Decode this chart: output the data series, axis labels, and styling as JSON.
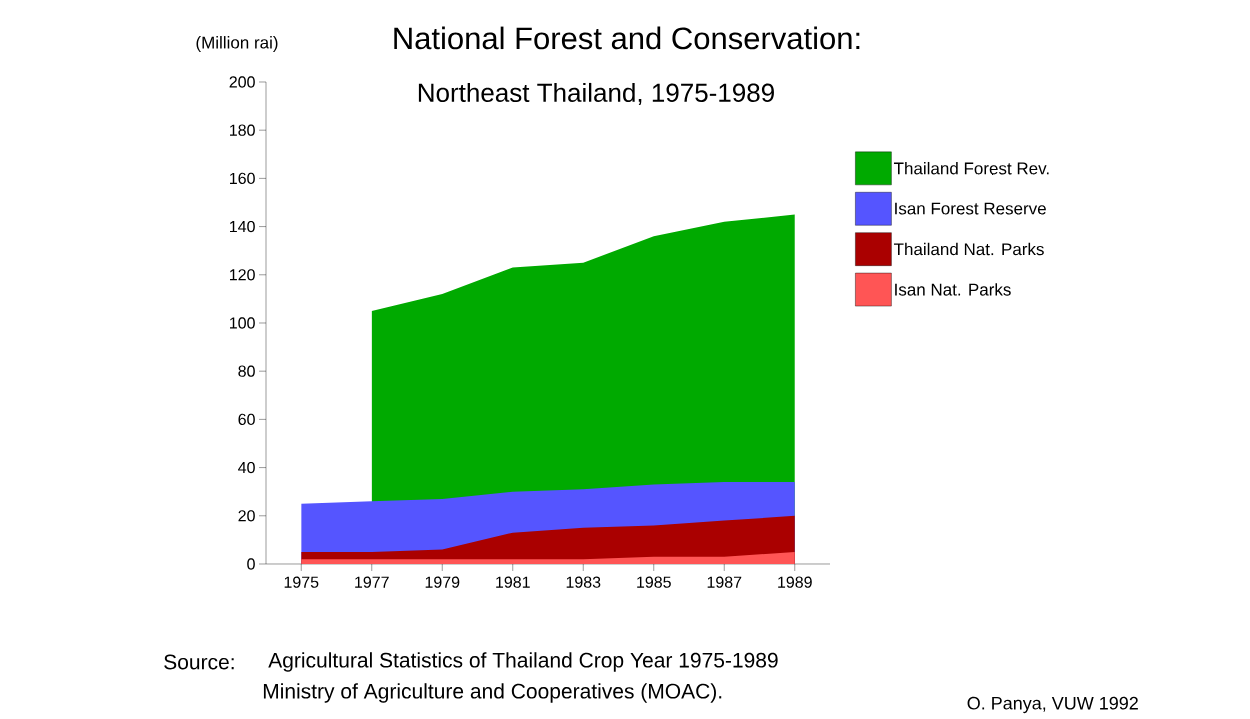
{
  "chart_data": {
    "type": "area",
    "title": "National Forest and Conservation:",
    "subtitle": "Northeast Thailand, 1975-1989",
    "ylabel": "(Million rai)",
    "annotations": [
      "Source:",
      "Agricultural Statistics of Thailand Crop Year 1975-1989",
      "Ministry of Agriculture and Cooperatives (MOAC).",
      "O. Panya, VUW 1992"
    ],
    "x": [
      1975,
      1977,
      1979,
      1981,
      1983,
      1985,
      1987,
      1989
    ],
    "xlim": [
      1974,
      1990
    ],
    "xticks": [
      1975,
      1977,
      1979,
      1981,
      1983,
      1985,
      1987,
      1989
    ],
    "ylim": [
      0,
      200
    ],
    "yticks": [
      0,
      20,
      40,
      60,
      80,
      100,
      120,
      140,
      160,
      180,
      200
    ],
    "legend": "right",
    "series": [
      {
        "name": "Thailand Forest Rev.",
        "color": "#00aa00",
        "values": [
          null,
          105,
          112,
          123,
          125,
          136,
          142,
          145
        ]
      },
      {
        "name": "Isan Forest Reserve",
        "color": "#5555ff",
        "values": [
          25,
          26,
          27,
          30,
          31,
          33,
          34,
          34
        ]
      },
      {
        "name": "Thailand Nat. Parks",
        "color": "#aa0000",
        "values": [
          5,
          5,
          6,
          13,
          15,
          16,
          18,
          20
        ]
      },
      {
        "name": "Isan Nat. Parks",
        "color": "#ff5555",
        "values": [
          2,
          2,
          2,
          2,
          2,
          3,
          3,
          5
        ]
      }
    ]
  }
}
